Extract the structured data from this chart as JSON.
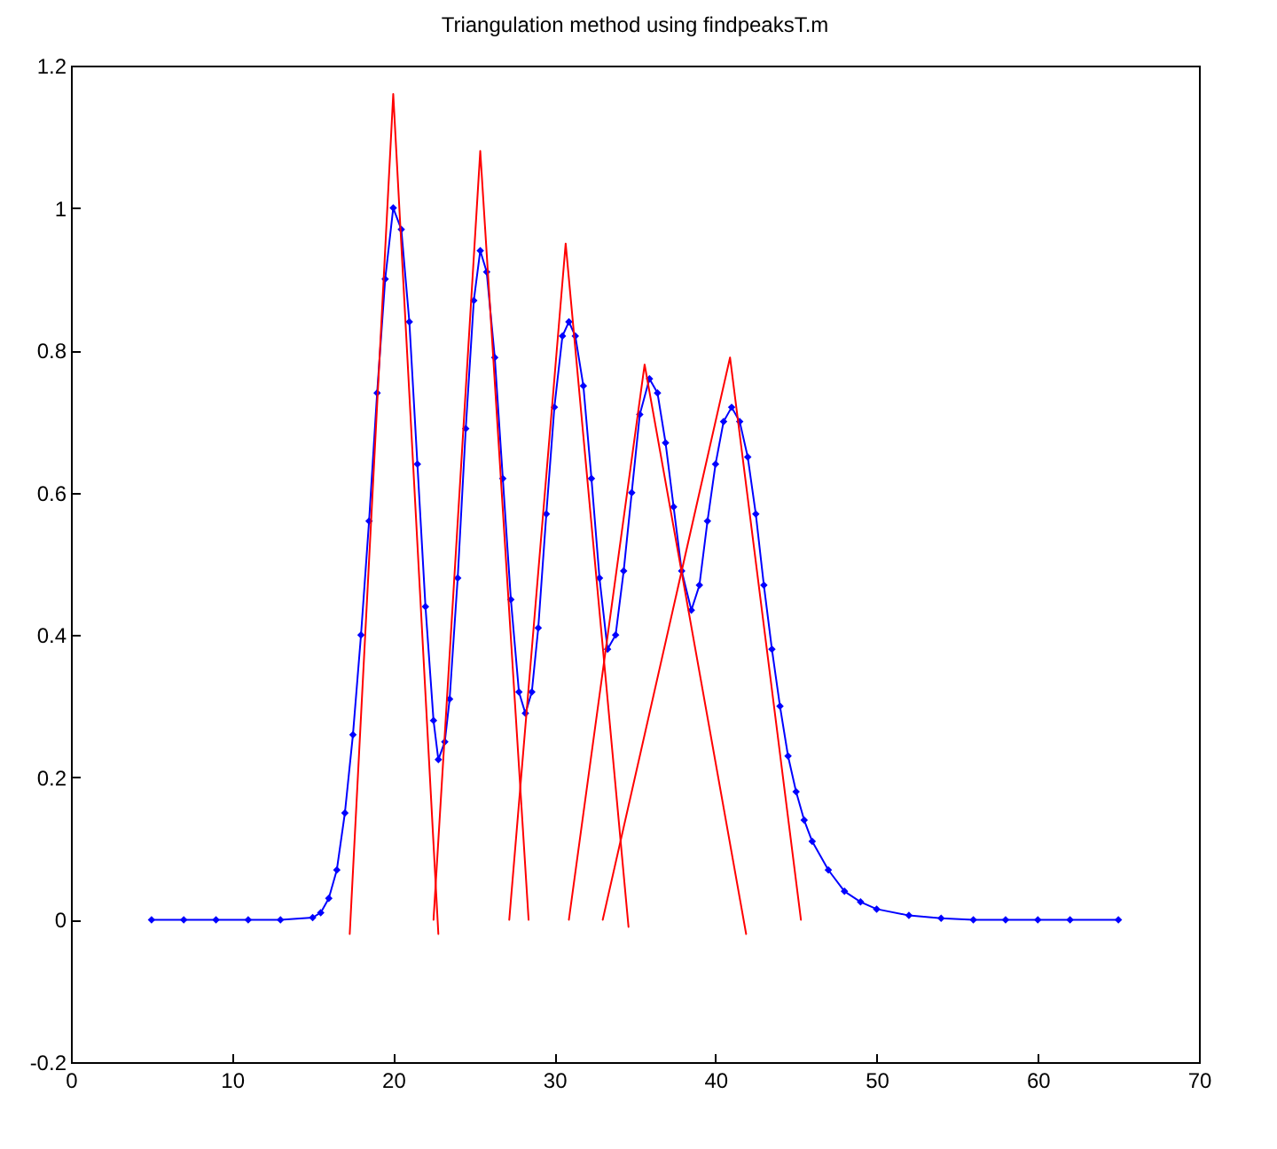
{
  "chart_data": {
    "type": "line",
    "title": "Triangulation method using findpeaksT.m",
    "xlim": [
      0,
      70
    ],
    "xticks": [
      0,
      10,
      20,
      30,
      40,
      50,
      60,
      70
    ],
    "ylim": [
      -0.2,
      1.2
    ],
    "yticks": [
      -0.2,
      0,
      0.2,
      0.4,
      0.6,
      0.8,
      1,
      1.2
    ],
    "grid": false,
    "line_style": "solid",
    "series": [
      {
        "color": "#0000ff",
        "marker": "diamond",
        "x": [
          5,
          7,
          9,
          11,
          13,
          15,
          15.5,
          16,
          16.5,
          17,
          17.5,
          18,
          18.5,
          19,
          19.5,
          20,
          20.5,
          21,
          21.5,
          22,
          22.5,
          22.8,
          23.2,
          23.5,
          24,
          24.5,
          25,
          25.4,
          25.8,
          26.3,
          26.8,
          27.3,
          27.8,
          28.2,
          28.6,
          29,
          29.5,
          30,
          30.5,
          30.9,
          31.3,
          31.8,
          32.3,
          32.8,
          33.3,
          33.8,
          34.3,
          34.8,
          35.3,
          35.9,
          36.4,
          36.9,
          37.4,
          37.9,
          38.5,
          39,
          39.5,
          40,
          40.5,
          41,
          41.5,
          42,
          42.5,
          43,
          43.5,
          44,
          44.5,
          45,
          45.5,
          46,
          47,
          48,
          49,
          50,
          52,
          54,
          56,
          58,
          60,
          62,
          65
        ],
        "values": [
          0,
          0,
          0,
          0,
          0,
          0.003,
          0.01,
          0.03,
          0.07,
          0.15,
          0.26,
          0.4,
          0.56,
          0.74,
          0.9,
          1,
          0.97,
          0.84,
          0.64,
          0.44,
          0.28,
          0.225,
          0.25,
          0.31,
          0.48,
          0.69,
          0.87,
          0.94,
          0.91,
          0.79,
          0.62,
          0.45,
          0.32,
          0.29,
          0.32,
          0.41,
          0.57,
          0.72,
          0.82,
          0.84,
          0.82,
          0.75,
          0.62,
          0.48,
          0.38,
          0.4,
          0.49,
          0.6,
          0.71,
          0.76,
          0.74,
          0.67,
          0.58,
          0.49,
          0.435,
          0.47,
          0.56,
          0.64,
          0.7,
          0.72,
          0.7,
          0.65,
          0.57,
          0.47,
          0.38,
          0.3,
          0.23,
          0.18,
          0.14,
          0.11,
          0.07,
          0.04,
          0.025,
          0.015,
          0.006,
          0.002,
          0,
          0,
          0,
          0,
          0
        ]
      },
      {
        "color": "#ff0000",
        "marker": "none",
        "x": [
          17.3,
          20,
          22.8
        ],
        "values": [
          -0.02,
          1.16,
          -0.02
        ]
      },
      {
        "color": "#ff0000",
        "marker": "none",
        "x": [
          22.5,
          25.4,
          28.4
        ],
        "values": [
          0,
          1.08,
          0
        ]
      },
      {
        "color": "#ff0000",
        "marker": "none",
        "x": [
          27.2,
          30.7,
          34.6
        ],
        "values": [
          0,
          0.95,
          -0.01
        ]
      },
      {
        "color": "#ff0000",
        "marker": "none",
        "x": [
          30.9,
          35.6,
          41.9
        ],
        "values": [
          0,
          0.78,
          -0.02
        ]
      },
      {
        "color": "#ff0000",
        "marker": "none",
        "x": [
          33,
          40.9,
          45.3
        ],
        "values": [
          0,
          0.79,
          0
        ]
      }
    ]
  }
}
